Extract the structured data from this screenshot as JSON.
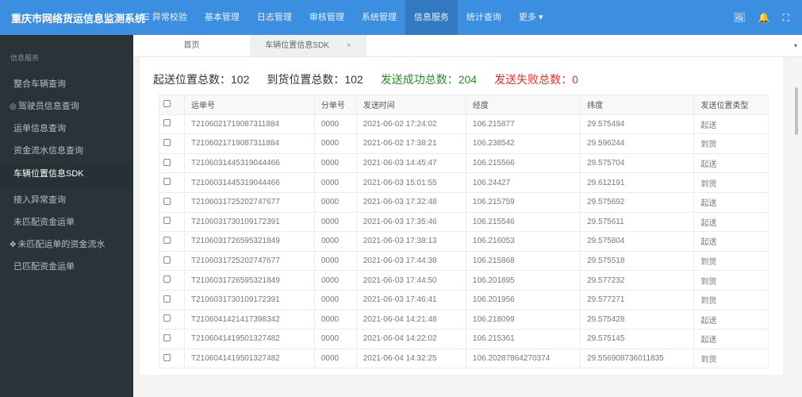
{
  "header": {
    "brand": "重庆市网络货运信息监测系统",
    "nav": [
      "☰ 异常校验",
      "基本管理",
      "日志管理",
      "审核管理",
      "系统管理",
      "信息服务",
      "统计查询",
      "更多 ▾"
    ],
    "active_nav": 5,
    "icons": [
      "avatar-image-icon",
      "bell-icon",
      "fullscreen-icon"
    ],
    "color": "#3c8ee0"
  },
  "sidebar": {
    "title": "信息服务",
    "items": [
      "整合车辆查询",
      "驾驶员信息查询",
      "运单信息查询",
      "资金流水信息查询",
      "车辆位置信息SDK",
      "接入异常查询",
      "未匹配资金运单",
      "未匹配运单的资金流水",
      "已匹配资金运单"
    ],
    "active": 4
  },
  "tabs": {
    "items": [
      "首页",
      "车辆位置信息SDK"
    ],
    "close": "×",
    "dropdown": "▾"
  },
  "stats": {
    "start": "起送位置总数：102",
    "arrive": "到货位置总数：102",
    "success": "发送成功总数：204",
    "fail": "发送失败总数：0"
  },
  "table": {
    "columns": [
      "运单号",
      "分单号",
      "发送时间",
      "经度",
      "纬度",
      "发送位置类型"
    ],
    "rows": [
      [
        "T2106021719087311884",
        "0000",
        "2021-06-02 17:24:02",
        "106.215877",
        "29.575494",
        "起送"
      ],
      [
        "T2106021719087311884",
        "0000",
        "2021-06-02 17:38:21",
        "106.238542",
        "29.596244",
        "到货"
      ],
      [
        "T2106031445319044466",
        "0000",
        "2021-06-03 14:45:47",
        "106.215566",
        "29.575704",
        "起送"
      ],
      [
        "T2106031445319044466",
        "0000",
        "2021-06-03 15:01:55",
        "106.24427",
        "29.612191",
        "到货"
      ],
      [
        "T2106031725202747677",
        "0000",
        "2021-06-03 17:32:48",
        "106.215759",
        "29.575692",
        "起送"
      ],
      [
        "T2106031730109172391",
        "0000",
        "2021-06-03 17:35:46",
        "106.215546",
        "29.575611",
        "起送"
      ],
      [
        "T2106031726595321849",
        "0000",
        "2021-06-03 17:38:13",
        "106.216053",
        "29.575804",
        "起送"
      ],
      [
        "T2106031725202747677",
        "0000",
        "2021-06-03 17:44:38",
        "106.215868",
        "29.575518",
        "到货"
      ],
      [
        "T2106031726595321849",
        "0000",
        "2021-06-03 17:44:50",
        "106.201895",
        "29.577232",
        "到货"
      ],
      [
        "T2106031730109172391",
        "0000",
        "2021-06-03 17:46:41",
        "106.201956",
        "29.577271",
        "到货"
      ],
      [
        "T2106041421417398342",
        "0000",
        "2021-06-04 14:21:48",
        "106.218099",
        "29.575428",
        "起送"
      ],
      [
        "T2106041419501327482",
        "0000",
        "2021-06-04 14:22:02",
        "106.215361",
        "29.575145",
        "起送"
      ],
      [
        "T2106041419501327482",
        "0000",
        "2021-06-04 14:32:25",
        "106.20287864270374",
        "29.556908736011835",
        "到货"
      ]
    ]
  }
}
